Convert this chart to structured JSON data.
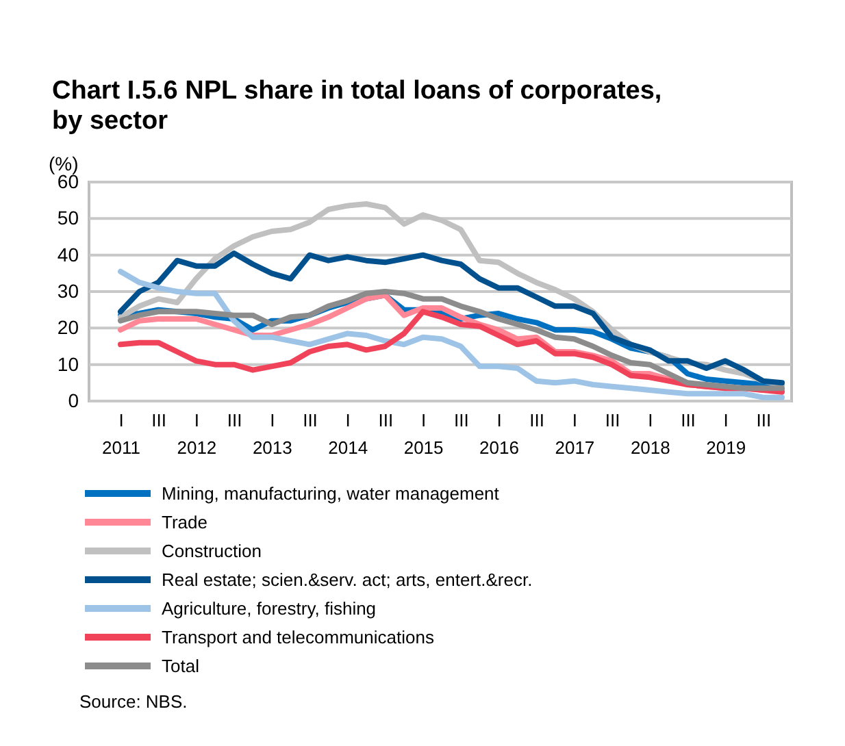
{
  "chart_data": {
    "type": "line",
    "title": "Chart I.5.6 NPL share in total loans of corporates, by sector",
    "ylabel": "(%)",
    "categories": [
      "I\n2011",
      null,
      "III",
      null,
      "I\n2012",
      null,
      "III",
      null,
      "I\n2013",
      null,
      "III",
      null,
      "I\n2014",
      null,
      "III",
      null,
      "I\n2015",
      null,
      "III",
      null,
      "I\n2016",
      null,
      "III",
      null,
      "I\n2017",
      null,
      "III",
      null,
      "I\n2018",
      null,
      "III",
      null,
      "I\n2019",
      null,
      "III",
      null
    ],
    "ylim": [
      0,
      60
    ],
    "yticks": [
      0,
      10,
      20,
      30,
      40,
      50,
      60
    ],
    "grid": "y",
    "legend": "bottom",
    "line_style": "solid",
    "series": [
      {
        "name": "Mining, manufacturing, water management",
        "color": "#0070c0",
        "values": [
          23.5,
          24,
          25,
          24.5,
          24,
          23,
          22.5,
          19.5,
          22,
          22,
          23.5,
          25.5,
          27,
          28,
          29,
          25,
          25,
          24.5,
          22.5,
          23.5,
          24,
          22.5,
          21.5,
          19.5,
          19.5,
          19,
          17,
          14.5,
          13.5,
          12,
          7.5,
          6,
          5.5,
          5,
          4.5,
          4.5
        ]
      },
      {
        "name": "Trade",
        "color": "#ff8796",
        "values": [
          19.5,
          22,
          22.5,
          22.5,
          22.5,
          21,
          19.5,
          18,
          18,
          19.5,
          21,
          23,
          25.5,
          28,
          29,
          23.5,
          25.5,
          25.5,
          23,
          21,
          19.5,
          17,
          17.5,
          13.5,
          13.5,
          12.5,
          11,
          7.5,
          7.5,
          6,
          4.5,
          4,
          3.5,
          3.5,
          3,
          3
        ]
      },
      {
        "name": "Construction",
        "color": "#c0c0c0",
        "values": [
          23,
          26,
          28,
          27,
          33.5,
          39,
          42.5,
          45,
          46.5,
          47,
          49,
          52.5,
          53.5,
          54,
          53,
          48.5,
          51,
          49.5,
          47,
          38.5,
          38,
          35,
          32.5,
          30.5,
          28,
          24.5,
          19.5,
          15.5,
          13.5,
          12,
          10.5,
          10,
          8.5,
          7.5,
          5.5,
          4.5
        ]
      },
      {
        "name": "Real estate; scien.&serv. act; arts, entert.&recr.",
        "color": "#00518e",
        "values": [
          24.5,
          30,
          32.5,
          38.5,
          37,
          37,
          40.5,
          37.5,
          35,
          33.5,
          40,
          38.5,
          39.5,
          38.5,
          38,
          39,
          40,
          38.5,
          37.5,
          33.5,
          31,
          31,
          28.5,
          26,
          26,
          24,
          17.5,
          15.5,
          14,
          11,
          11,
          9,
          11,
          8.5,
          5.5,
          5
        ]
      },
      {
        "name": "Agriculture, forestry, fishing",
        "color": "#9dc3e6",
        "values": [
          35.5,
          32.5,
          31,
          30,
          29.5,
          29.5,
          22,
          17.5,
          17.5,
          16.5,
          15.5,
          17,
          18.5,
          18,
          16.5,
          15.5,
          17.5,
          17,
          15,
          9.5,
          9.5,
          9,
          5.5,
          5,
          5.5,
          4.5,
          4,
          3.5,
          3,
          2.5,
          2,
          2,
          2,
          2,
          1,
          1
        ]
      },
      {
        "name": "Transport and telecommunications",
        "color": "#f0435a",
        "values": [
          15.5,
          16,
          16,
          13.5,
          11,
          10,
          10,
          8.5,
          9.5,
          10.5,
          13.5,
          15,
          15.5,
          14,
          15,
          18.5,
          24.5,
          23,
          21,
          20.5,
          18,
          15.5,
          16.5,
          13,
          13,
          12,
          10,
          7,
          6.5,
          5.5,
          4.5,
          4,
          3.5,
          3.5,
          3,
          2.5
        ]
      },
      {
        "name": "Total",
        "color": "#8c8c8c",
        "values": [
          22,
          23.5,
          24.5,
          24.5,
          24.5,
          24,
          23.5,
          23.5,
          21,
          23,
          23.5,
          26,
          27.5,
          29.5,
          30,
          29.5,
          28,
          28,
          26,
          24.5,
          22.5,
          21,
          19.5,
          17.5,
          17,
          15,
          12.5,
          10.5,
          10,
          7.5,
          5,
          4.5,
          4,
          3.5,
          3.5,
          3.5
        ]
      }
    ],
    "annotations": [
      "Source: NBS."
    ]
  }
}
